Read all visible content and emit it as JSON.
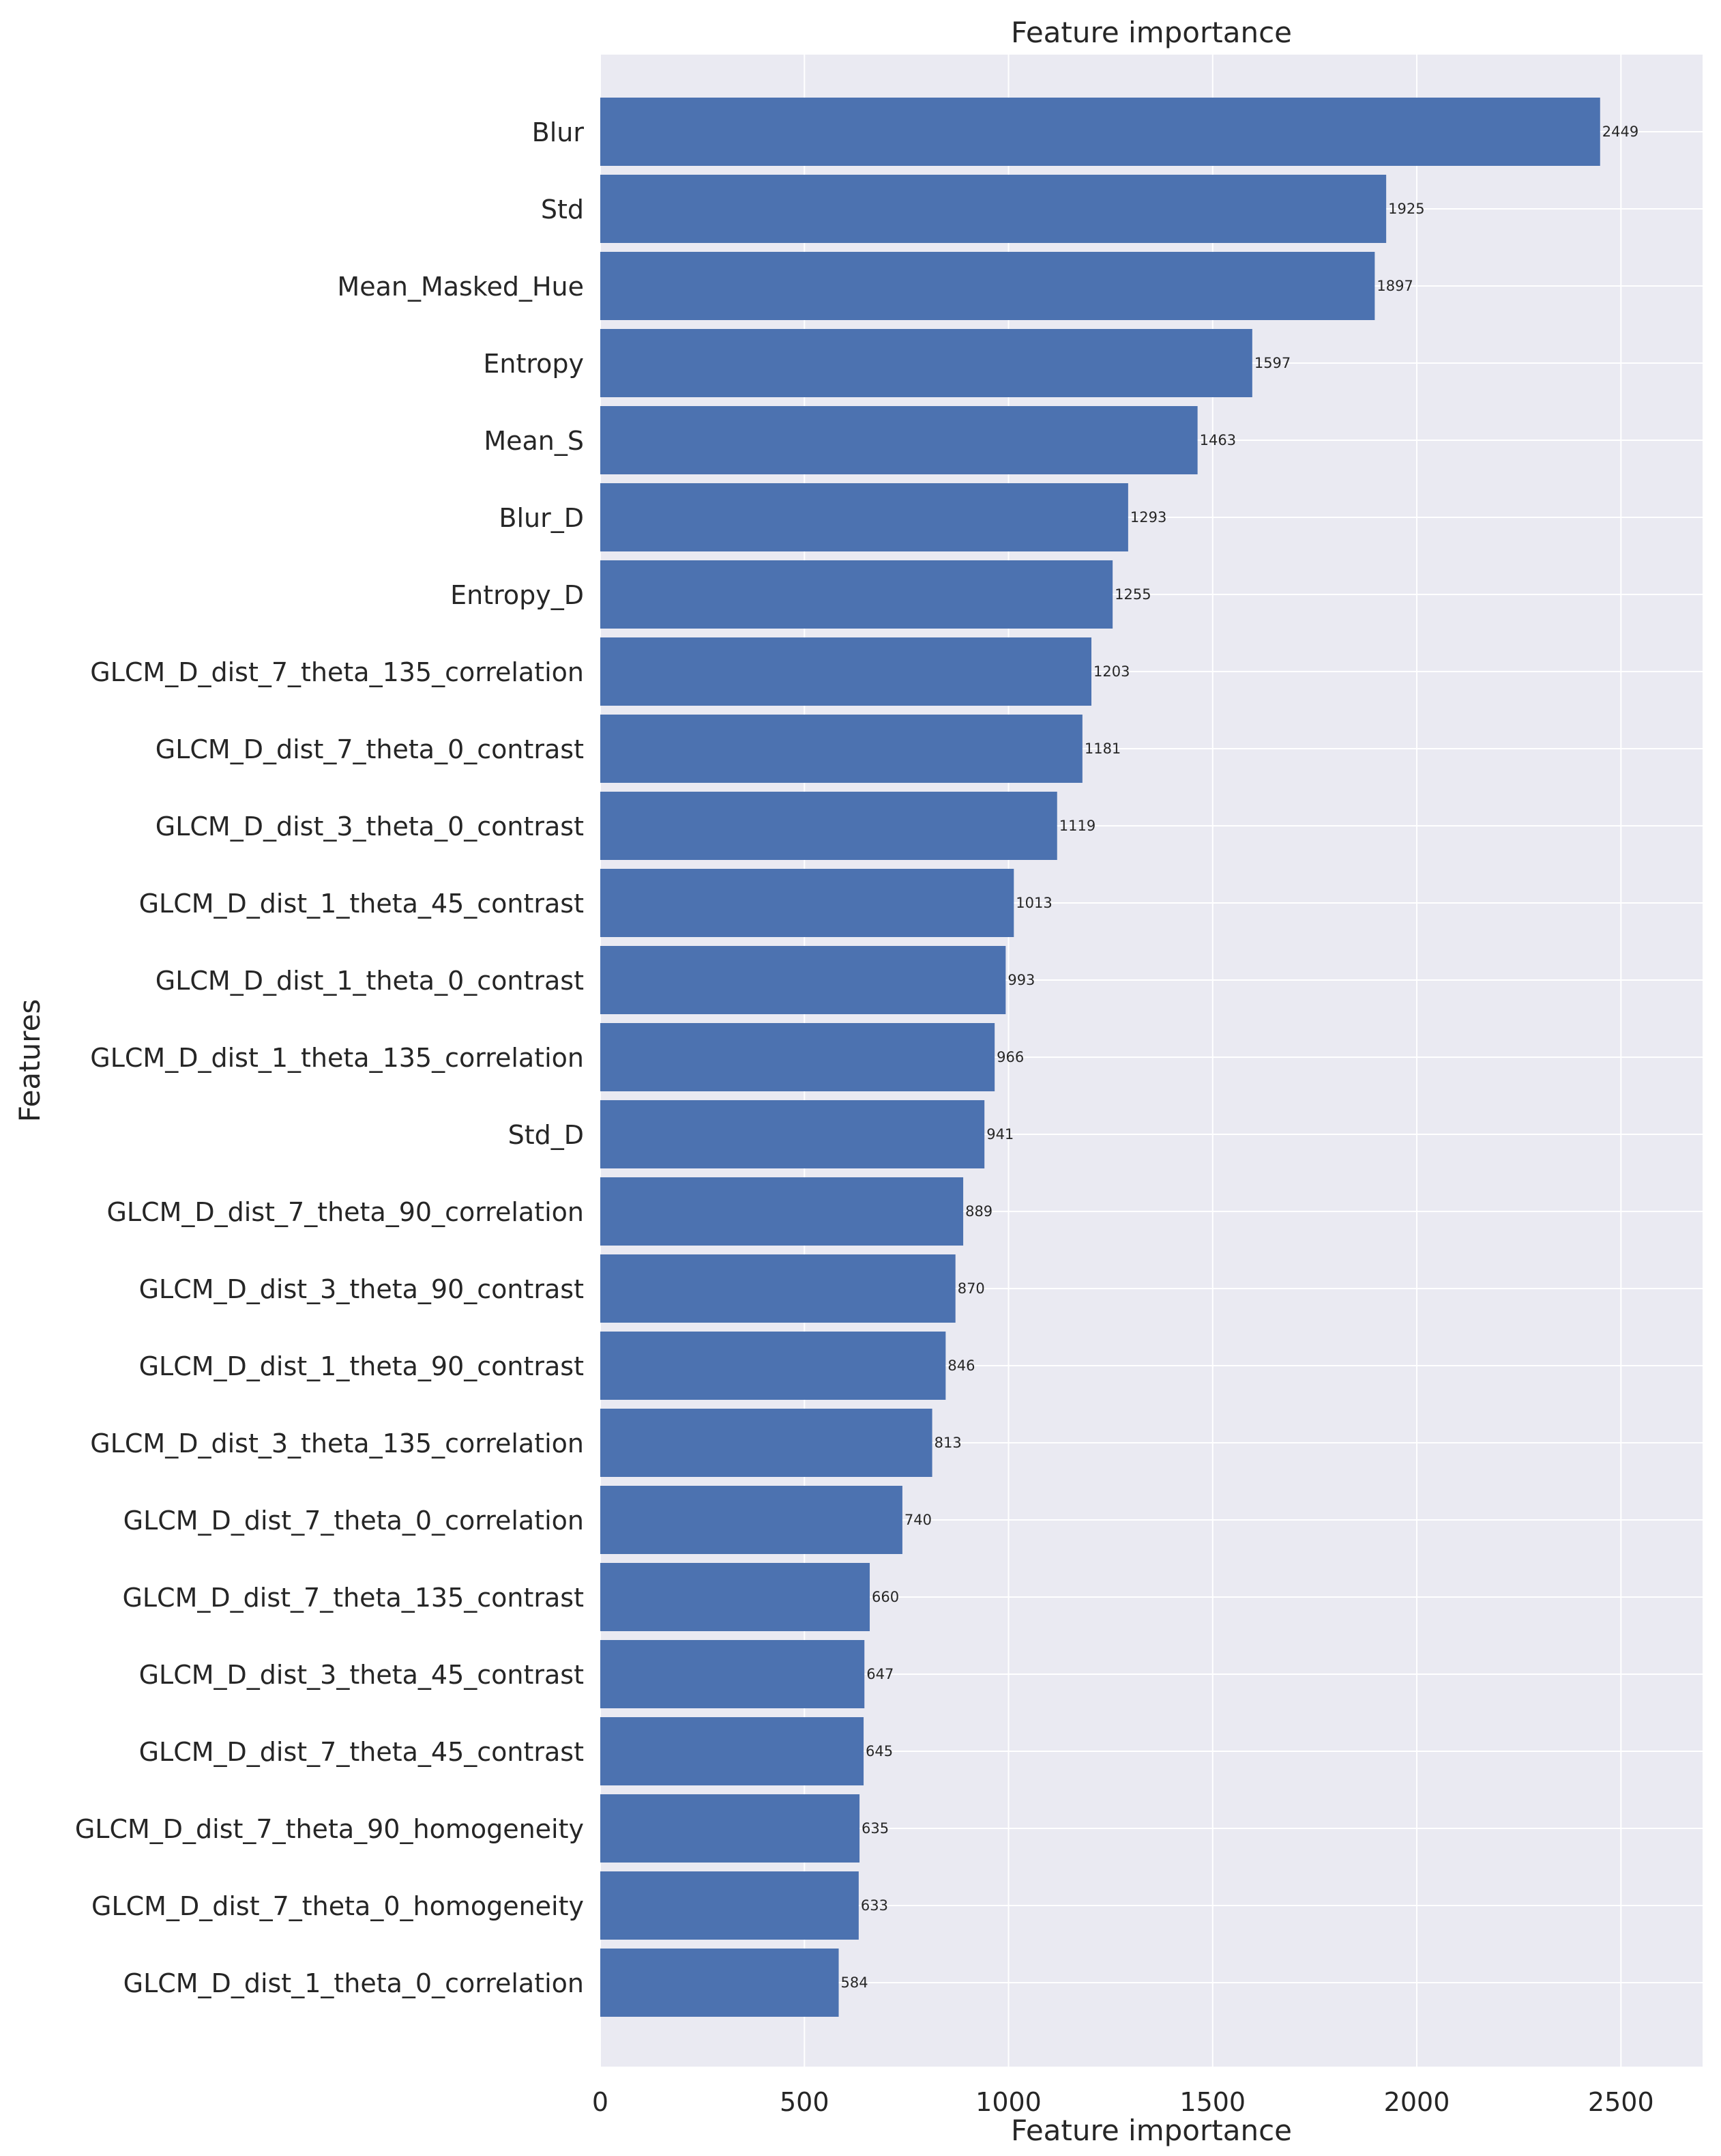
{
  "chart_data": {
    "type": "bar",
    "orientation": "horizontal",
    "title": "Feature importance",
    "xlabel": "Feature importance",
    "ylabel": "Features",
    "xlim": [
      0,
      2700
    ],
    "xticks": [
      0,
      500,
      1000,
      1500,
      2000,
      2500
    ],
    "grid": true,
    "bar_color": "#4c72b0",
    "background_color": "#eaeaf2",
    "categories": [
      "Blur",
      "Std",
      "Mean_Masked_Hue",
      "Entropy",
      "Mean_S",
      "Blur_D",
      "Entropy_D",
      "GLCM_D_dist_7_theta_135_correlation",
      "GLCM_D_dist_7_theta_0_contrast",
      "GLCM_D_dist_3_theta_0_contrast",
      "GLCM_D_dist_1_theta_45_contrast",
      "GLCM_D_dist_1_theta_0_contrast",
      "GLCM_D_dist_1_theta_135_correlation",
      "Std_D",
      "GLCM_D_dist_7_theta_90_correlation",
      "GLCM_D_dist_3_theta_90_contrast",
      "GLCM_D_dist_1_theta_90_contrast",
      "GLCM_D_dist_3_theta_135_correlation",
      "GLCM_D_dist_7_theta_0_correlation",
      "GLCM_D_dist_7_theta_135_contrast",
      "GLCM_D_dist_3_theta_45_contrast",
      "GLCM_D_dist_7_theta_45_contrast",
      "GLCM_D_dist_7_theta_90_homogeneity",
      "GLCM_D_dist_7_theta_0_homogeneity",
      "GLCM_D_dist_1_theta_0_correlation"
    ],
    "values": [
      2449,
      1925,
      1897,
      1597,
      1463,
      1293,
      1255,
      1203,
      1181,
      1119,
      1013,
      993,
      966,
      941,
      889,
      870,
      846,
      813,
      740,
      660,
      647,
      645,
      635,
      633,
      584
    ]
  }
}
